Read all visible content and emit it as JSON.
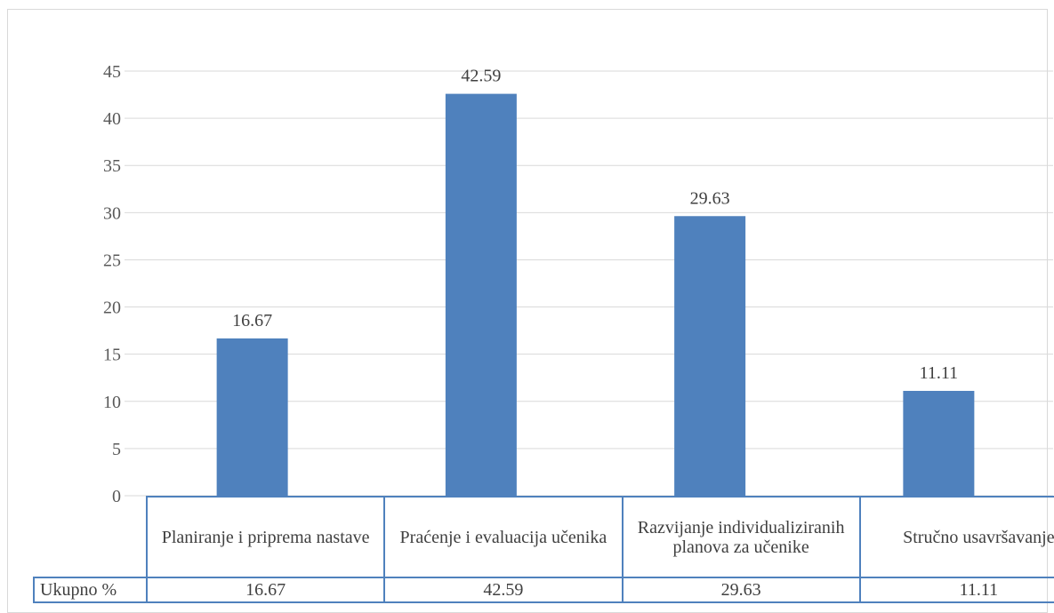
{
  "chart_data": {
    "type": "bar",
    "categories": [
      "Planiranje i priprema nastave",
      "Praćenje i evaluacija učenika",
      "Razvijanje individualiziranih planova za učenike",
      "Stručno usavršavanje"
    ],
    "series": [
      {
        "name": "Ukupno %",
        "values": [
          16.67,
          42.59,
          29.63,
          11.11
        ],
        "color": "#4f81bd"
      }
    ],
    "data_labels": [
      "16.67",
      "42.59",
      "29.63",
      "11.11"
    ],
    "yticks": [
      "0",
      "5",
      "10",
      "15",
      "20",
      "25",
      "30",
      "35",
      "40",
      "45"
    ],
    "ylim": [
      0,
      45
    ],
    "grid": true,
    "legend": "none",
    "data_table": true,
    "title": "",
    "xlabel": "",
    "ylabel": ""
  },
  "table": {
    "row_header": "Ukupno %",
    "values": [
      "16.67",
      "42.59",
      "29.63",
      "11.11"
    ]
  }
}
